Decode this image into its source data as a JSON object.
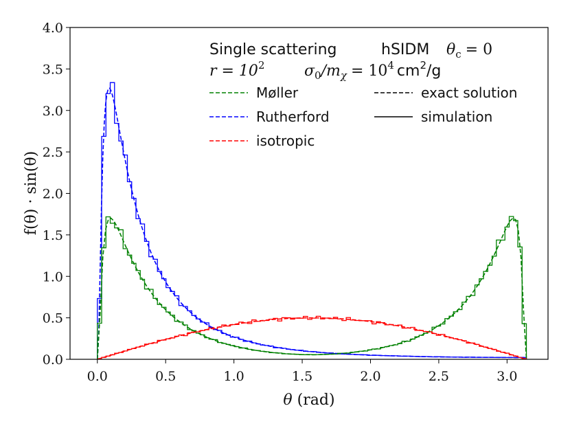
{
  "chart_data": {
    "type": "line",
    "xlabel_symbol": "θ",
    "xlabel_unit": "(rad)",
    "ylabel": "f(θ) · sin(θ)",
    "xlim": [
      -0.2,
      3.3
    ],
    "ylim": [
      0.0,
      4.0
    ],
    "xticks": [
      0.0,
      0.5,
      1.0,
      1.5,
      2.0,
      2.5,
      3.0
    ],
    "xtick_labels": [
      "0.0",
      "0.5",
      "1.0",
      "1.5",
      "2.0",
      "2.5",
      "3.0"
    ],
    "yticks": [
      0.0,
      0.5,
      1.0,
      1.5,
      2.0,
      2.5,
      3.0,
      3.5,
      4.0
    ],
    "ytick_labels": [
      "0.0",
      "0.5",
      "1.0",
      "1.5",
      "2.0",
      "2.5",
      "3.0",
      "3.5",
      "4.0"
    ],
    "grid": false,
    "annotations": {
      "title_left": "Single scattering",
      "title_mid": "hSIDM",
      "theta_c_symbol": "θ",
      "theta_c_sub": "c",
      "theta_c_eq": "= 0",
      "r_label": "r = 10",
      "r_exp": "2",
      "sigma_label": "σ",
      "sigma_sub0": "0",
      "sigma_slash_m": "/m",
      "sigma_sub_chi": "χ",
      "sigma_eq": "= 10",
      "sigma_exp": "4",
      "unit_cm": "cm",
      "unit_cm_exp": "2",
      "unit_g": "/g"
    },
    "legend": {
      "placement": "top-right",
      "entries": [
        {
          "label": "Møller",
          "color": "#008000",
          "style": "dashed"
        },
        {
          "label": "Rutherford",
          "color": "#0000ff",
          "style": "dashed"
        },
        {
          "label": "isotropic",
          "color": "#ff0000",
          "style": "dashed"
        },
        {
          "label": "exact solution",
          "color": "#000000",
          "style": "dashed"
        },
        {
          "label": "simulation",
          "color": "#000000",
          "style": "solid"
        }
      ]
    },
    "series": [
      {
        "name": "Rutherford exact",
        "color": "#0000ff",
        "style": "dashed",
        "x": [
          0.0,
          0.01,
          0.02,
          0.03,
          0.04,
          0.05,
          0.06,
          0.07,
          0.08,
          0.09,
          0.1,
          0.11,
          0.12,
          0.13,
          0.14,
          0.15,
          0.16,
          0.17,
          0.18,
          0.19,
          0.2,
          0.21,
          0.22,
          0.23,
          0.24,
          0.25,
          0.26,
          0.27,
          0.28,
          0.29,
          0.3,
          0.31,
          0.32,
          0.33,
          0.34,
          0.35,
          0.36,
          0.37,
          0.38,
          0.39,
          0.4,
          0.41,
          0.42,
          0.43,
          0.44,
          0.45,
          0.46,
          0.47,
          0.48,
          0.49,
          0.5,
          0.51,
          0.52,
          0.53,
          0.54,
          0.55,
          0.56,
          0.57,
          0.58,
          0.59,
          0.6,
          0.61,
          0.62,
          0.63,
          0.64,
          0.65,
          0.66,
          0.67,
          0.68,
          0.69,
          0.7,
          0.71,
          0.72,
          0.73,
          0.74,
          0.75,
          0.76,
          0.77,
          0.78,
          0.79,
          0.8,
          0.81,
          0.82,
          0.83,
          0.84,
          0.85,
          0.86,
          0.87,
          0.88,
          0.89,
          0.9,
          0.92,
          0.94,
          0.96,
          0.98,
          1.0,
          1.05,
          1.1,
          1.15,
          1.2,
          1.25,
          1.3,
          1.35,
          1.4,
          1.5,
          1.6,
          1.7,
          1.8,
          1.9,
          2.0,
          2.2,
          2.4,
          2.6,
          2.8,
          3.0,
          3.1,
          3.14
        ],
        "y": [
          0.0,
          0.298,
          1.06,
          1.845,
          2.44,
          2.83,
          3.07,
          3.203,
          3.262,
          3.268,
          3.238,
          3.185,
          3.116,
          3.037,
          2.952,
          2.865,
          2.776,
          2.688,
          2.601,
          2.515,
          2.432,
          2.351,
          2.272,
          2.196,
          2.123,
          2.052,
          1.984,
          1.918,
          1.855,
          1.794,
          1.735,
          1.679,
          1.624,
          1.572,
          1.522,
          1.474,
          1.427,
          1.383,
          1.34,
          1.298,
          1.258,
          1.22,
          1.183,
          1.148,
          1.113,
          1.08,
          1.048,
          1.018,
          0.988,
          0.96,
          0.932,
          0.906,
          0.88,
          0.855,
          0.832,
          0.808,
          0.786,
          0.765,
          0.744,
          0.724,
          0.704,
          0.686,
          0.667,
          0.65,
          0.633,
          0.616,
          0.6,
          0.585,
          0.57,
          0.555,
          0.541,
          0.527,
          0.514,
          0.501,
          0.489,
          0.477,
          0.465,
          0.454,
          0.443,
          0.432,
          0.422,
          0.412,
          0.402,
          0.393,
          0.384,
          0.375,
          0.366,
          0.358,
          0.35,
          0.342,
          0.334,
          0.319,
          0.306,
          0.292,
          0.28,
          0.268,
          0.241,
          0.218,
          0.197,
          0.178,
          0.162,
          0.147,
          0.134,
          0.123,
          0.103,
          0.088,
          0.075,
          0.065,
          0.057,
          0.05,
          0.04,
          0.032,
          0.027,
          0.024,
          0.022,
          0.021,
          0.021
        ]
      },
      {
        "name": "Møller exact",
        "color": "#008000",
        "style": "dashed",
        "x": [
          0.0,
          0.02,
          0.04,
          0.06,
          0.08,
          0.1,
          0.12,
          0.14,
          0.16,
          0.18,
          0.2,
          0.22,
          0.24,
          0.26,
          0.28,
          0.3,
          0.32,
          0.34,
          0.36,
          0.38,
          0.4,
          0.42,
          0.44,
          0.46,
          0.48,
          0.5,
          0.52,
          0.54,
          0.56,
          0.58,
          0.6,
          0.62,
          0.64,
          0.66,
          0.68,
          0.7,
          0.72,
          0.74,
          0.76,
          0.78,
          0.8,
          0.85,
          0.9,
          0.95,
          1.0,
          1.1,
          1.2,
          1.3,
          1.4,
          1.5,
          1.571,
          1.641,
          1.742,
          1.842,
          1.942,
          2.042,
          2.142,
          2.192,
          2.242,
          2.292,
          2.342,
          2.362,
          2.382,
          2.402,
          2.422,
          2.442,
          2.462,
          2.482,
          2.502,
          2.522,
          2.542,
          2.562,
          2.582,
          2.602,
          2.622,
          2.642,
          2.662,
          2.682,
          2.702,
          2.722,
          2.742,
          2.762,
          2.782,
          2.802,
          2.822,
          2.842,
          2.862,
          2.882,
          2.902,
          2.922,
          2.942,
          2.962,
          2.982,
          3.002,
          3.022,
          3.042,
          3.062,
          3.082,
          3.102,
          3.122,
          3.142
        ],
        "y": [
          0.0,
          0.549,
          1.229,
          1.561,
          1.684,
          1.701,
          1.669,
          1.611,
          1.54,
          1.465,
          1.39,
          1.316,
          1.245,
          1.177,
          1.112,
          1.05,
          0.992,
          0.937,
          0.885,
          0.837,
          0.79,
          0.747,
          0.707,
          0.668,
          0.632,
          0.598,
          0.566,
          0.536,
          0.507,
          0.48,
          0.455,
          0.431,
          0.408,
          0.387,
          0.367,
          0.348,
          0.33,
          0.313,
          0.297,
          0.281,
          0.267,
          0.234,
          0.206,
          0.181,
          0.16,
          0.125,
          0.098,
          0.078,
          0.065,
          0.057,
          0.055,
          0.057,
          0.065,
          0.078,
          0.098,
          0.125,
          0.16,
          0.181,
          0.206,
          0.234,
          0.267,
          0.281,
          0.297,
          0.313,
          0.33,
          0.348,
          0.367,
          0.387,
          0.408,
          0.431,
          0.455,
          0.48,
          0.507,
          0.536,
          0.566,
          0.598,
          0.632,
          0.668,
          0.707,
          0.747,
          0.79,
          0.837,
          0.885,
          0.937,
          0.992,
          1.05,
          1.112,
          1.177,
          1.245,
          1.316,
          1.39,
          1.465,
          1.54,
          1.611,
          1.669,
          1.701,
          1.684,
          1.561,
          1.229,
          0.549,
          0.0
        ]
      },
      {
        "name": "isotropic exact",
        "color": "#ff0000",
        "style": "dashed",
        "x": [
          0.0,
          0.1,
          0.2,
          0.3,
          0.4,
          0.5,
          0.6,
          0.7,
          0.8,
          0.9,
          1.0,
          1.1,
          1.2,
          1.3,
          1.4,
          1.5,
          1.6,
          1.7,
          1.8,
          1.9,
          2.0,
          2.1,
          2.2,
          2.3,
          2.4,
          2.5,
          2.6,
          2.7,
          2.8,
          2.9,
          3.0,
          3.1,
          3.142
        ],
        "y": [
          0.0,
          0.05,
          0.099,
          0.148,
          0.195,
          0.24,
          0.282,
          0.322,
          0.359,
          0.392,
          0.421,
          0.446,
          0.466,
          0.482,
          0.493,
          0.499,
          0.5,
          0.496,
          0.487,
          0.473,
          0.455,
          0.432,
          0.404,
          0.373,
          0.338,
          0.299,
          0.258,
          0.214,
          0.167,
          0.119,
          0.071,
          0.021,
          0.0
        ]
      }
    ]
  }
}
